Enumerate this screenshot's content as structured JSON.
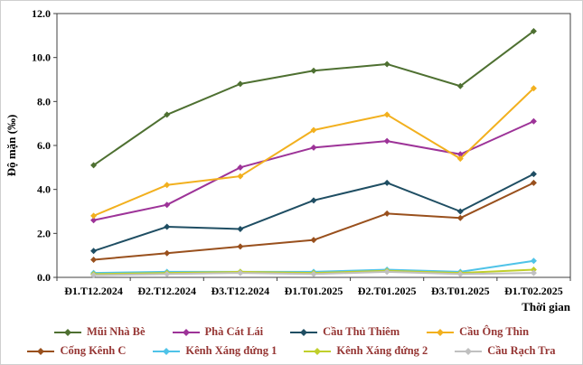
{
  "chart_data": {
    "type": "line",
    "title": "",
    "xlabel": "Thời gian",
    "ylabel": "Độ mặn (‰)",
    "ylim": [
      0,
      12
    ],
    "ytick_step": 2,
    "grid": false,
    "legend_position": "bottom",
    "legend_columns": 4,
    "categories": [
      "Đ1.T12.2024",
      "Đ2.T12.2024",
      "Đ3.T12.2024",
      "Đ1.T01.2025",
      "Đ2.T01.2025",
      "Đ3.T01.2025",
      "Đ1.T02.2025"
    ],
    "series": [
      {
        "name": "Mũi Nhà Bè",
        "color": "#4e7031",
        "values": [
          5.1,
          7.4,
          8.8,
          9.4,
          9.7,
          8.7,
          11.2
        ]
      },
      {
        "name": "Phà Cát Lái",
        "color": "#9d3398",
        "values": [
          2.6,
          3.3,
          5.0,
          5.9,
          6.2,
          5.6,
          7.1
        ]
      },
      {
        "name": "Cầu Thủ Thiêm",
        "color": "#1f4e63",
        "values": [
          1.2,
          2.3,
          2.2,
          3.5,
          4.3,
          3.0,
          4.7
        ]
      },
      {
        "name": "Cầu Ông Thìn",
        "color": "#f2b01e",
        "values": [
          2.8,
          4.2,
          4.6,
          6.7,
          7.4,
          5.4,
          8.6
        ]
      },
      {
        "name": "Cống Kênh C",
        "color": "#99501d",
        "values": [
          0.8,
          1.1,
          1.4,
          1.7,
          2.9,
          2.7,
          4.3
        ]
      },
      {
        "name": "Kênh Xáng đứng 1",
        "color": "#4fc3e8",
        "values": [
          0.2,
          0.25,
          0.25,
          0.25,
          0.35,
          0.25,
          0.75
        ]
      },
      {
        "name": "Kênh Xáng đứng 2",
        "color": "#c0cf2c",
        "values": [
          0.15,
          0.2,
          0.25,
          0.2,
          0.3,
          0.2,
          0.35
        ]
      },
      {
        "name": "Cầu Rạch Tra",
        "color": "#c0c0c0",
        "values": [
          0.1,
          0.15,
          0.2,
          0.15,
          0.25,
          0.15,
          0.2
        ]
      }
    ],
    "colors": {
      "axis_text": "#000000",
      "legend_text": "#963634",
      "plot_border": "#404040"
    }
  }
}
